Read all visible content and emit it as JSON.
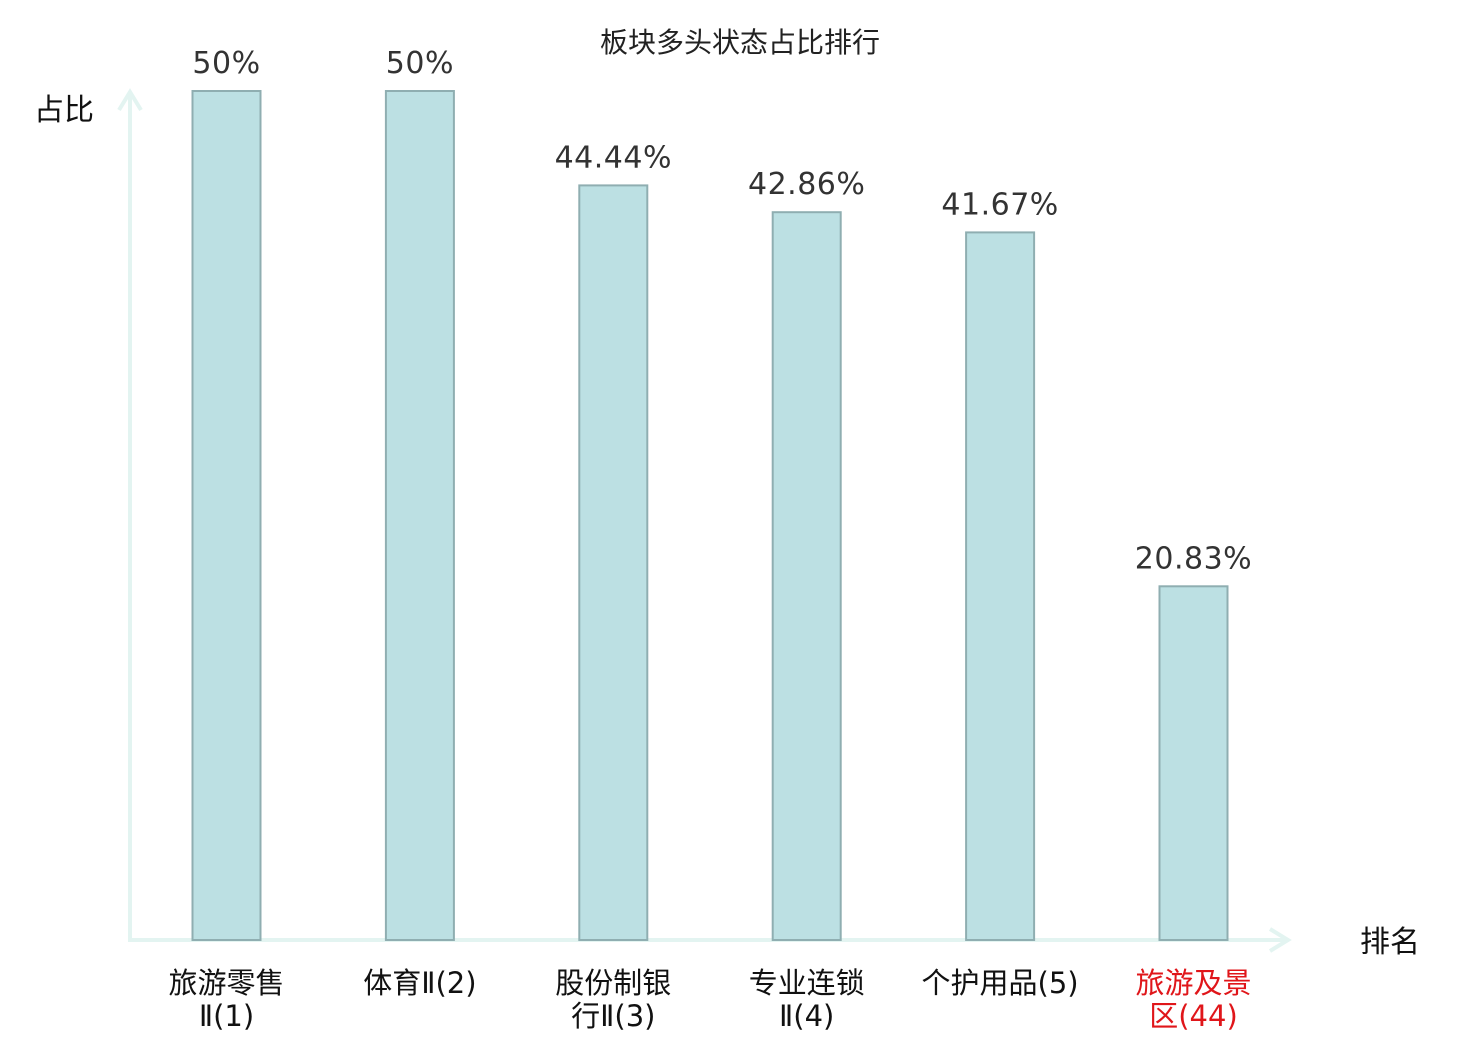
{
  "chart_data": {
    "type": "bar",
    "title": "板块多头状态占比排行",
    "ylabel": "占比",
    "xlabel": "排名",
    "ylim": [
      0,
      50
    ],
    "grid": false,
    "categories": [
      [
        "旅游零售",
        "Ⅱ(1)"
      ],
      [
        "体育Ⅱ(2)"
      ],
      [
        "股份制银",
        "行Ⅱ(3)"
      ],
      [
        "专业连锁",
        "Ⅱ(4)"
      ],
      [
        "个护用品(5)"
      ],
      [
        "旅游及景",
        "区(44)"
      ]
    ],
    "values": [
      50,
      50,
      44.44,
      42.86,
      41.67,
      20.83
    ],
    "value_labels": [
      "50%",
      "50%",
      "44.44%",
      "42.86%",
      "41.67%",
      "20.83%"
    ],
    "highlight_index": 5,
    "colors": {
      "bar_fill": "#bce0e3",
      "bar_stroke": "#8faeb1",
      "axis": "#e3f4f1",
      "highlight_label": "#e0161a"
    }
  }
}
